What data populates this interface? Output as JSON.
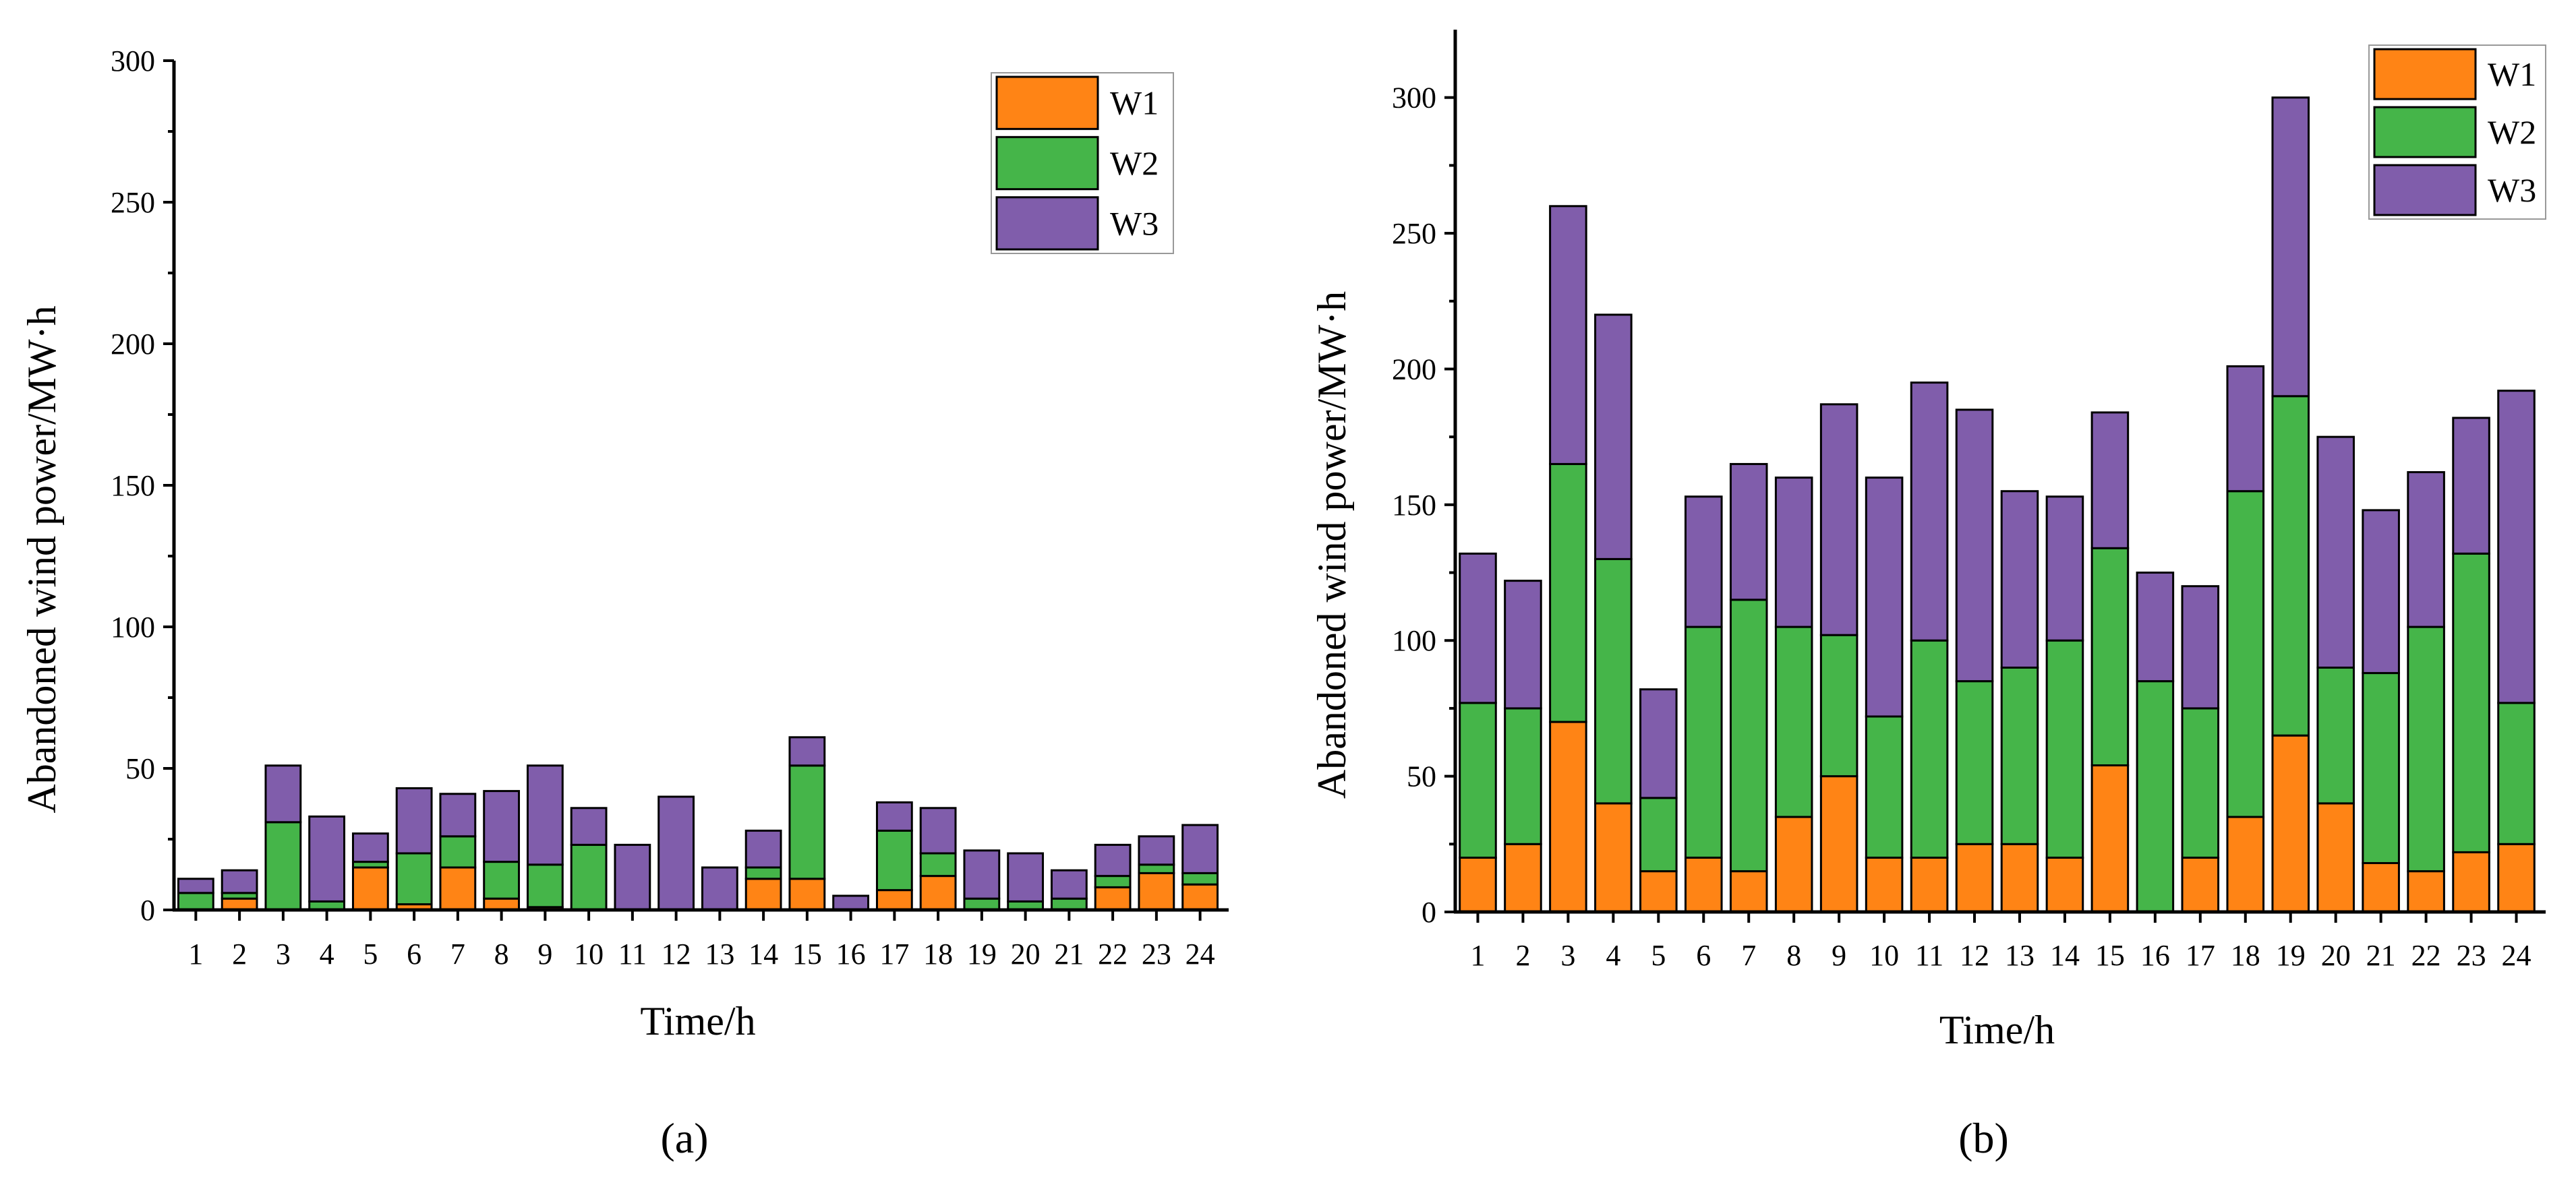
{
  "colors": {
    "W1": "#FF8415",
    "W2": "#45B549",
    "W3": "#805DAB"
  },
  "chart_data": [
    {
      "panel_label": "(a)",
      "type": "bar",
      "stacked": true,
      "xlabel": "Time/h",
      "ylabel": "Abandoned wind power/MW·h",
      "ylim": [
        0,
        300
      ],
      "yticks": [
        0,
        50,
        100,
        150,
        200,
        250,
        300
      ],
      "legend_position": "top-right",
      "categories": [
        "1",
        "2",
        "3",
        "4",
        "5",
        "6",
        "7",
        "8",
        "9",
        "10",
        "11",
        "12",
        "13",
        "14",
        "15",
        "16",
        "17",
        "18",
        "19",
        "20",
        "21",
        "22",
        "23",
        "24"
      ],
      "series": [
        {
          "name": "W1",
          "values": [
            0,
            4,
            0,
            0,
            15,
            2,
            15,
            4,
            1,
            0,
            0,
            0,
            0,
            11,
            11,
            0,
            7,
            12,
            0,
            0,
            0,
            8,
            13,
            9
          ]
        },
        {
          "name": "W2",
          "values": [
            6,
            2,
            31,
            3,
            2,
            18,
            11,
            13,
            15,
            23,
            0,
            0,
            0,
            4,
            40,
            0,
            21,
            8,
            4,
            3,
            4,
            4,
            3,
            4
          ]
        },
        {
          "name": "W3",
          "values": [
            5,
            8,
            20,
            30,
            10,
            23,
            15,
            25,
            35,
            13,
            23,
            40,
            15,
            13,
            10,
            5,
            10,
            16,
            17,
            17,
            10,
            11,
            10,
            17
          ]
        }
      ]
    },
    {
      "panel_label": "(b)",
      "type": "bar",
      "stacked": true,
      "xlabel": "Time/h",
      "ylabel": "Abandoned wind power/MW·h",
      "ylim": [
        0,
        325
      ],
      "yticks": [
        0,
        50,
        100,
        150,
        200,
        250,
        300
      ],
      "legend_position": "top-right",
      "categories": [
        "1",
        "2",
        "3",
        "4",
        "5",
        "6",
        "7",
        "8",
        "9",
        "10",
        "11",
        "12",
        "13",
        "14",
        "15",
        "16",
        "17",
        "18",
        "19",
        "20",
        "21",
        "22",
        "23",
        "24"
      ],
      "series": [
        {
          "name": "W1",
          "values": [
            20,
            25,
            70,
            40,
            15,
            20,
            15,
            35,
            50,
            20,
            20,
            25,
            25,
            20,
            54,
            0,
            20,
            35,
            65,
            40,
            18,
            15,
            22,
            25
          ]
        },
        {
          "name": "W2",
          "values": [
            57,
            50,
            95,
            90,
            27,
            85,
            100,
            70,
            52,
            52,
            80,
            60,
            65,
            80,
            80,
            85,
            55,
            120,
            125,
            50,
            70,
            90,
            110,
            52
          ]
        },
        {
          "name": "W3",
          "values": [
            55,
            47,
            95,
            90,
            40,
            48,
            50,
            55,
            85,
            88,
            95,
            100,
            65,
            53,
            50,
            40,
            45,
            46,
            110,
            85,
            60,
            57,
            50,
            115
          ]
        }
      ]
    }
  ]
}
